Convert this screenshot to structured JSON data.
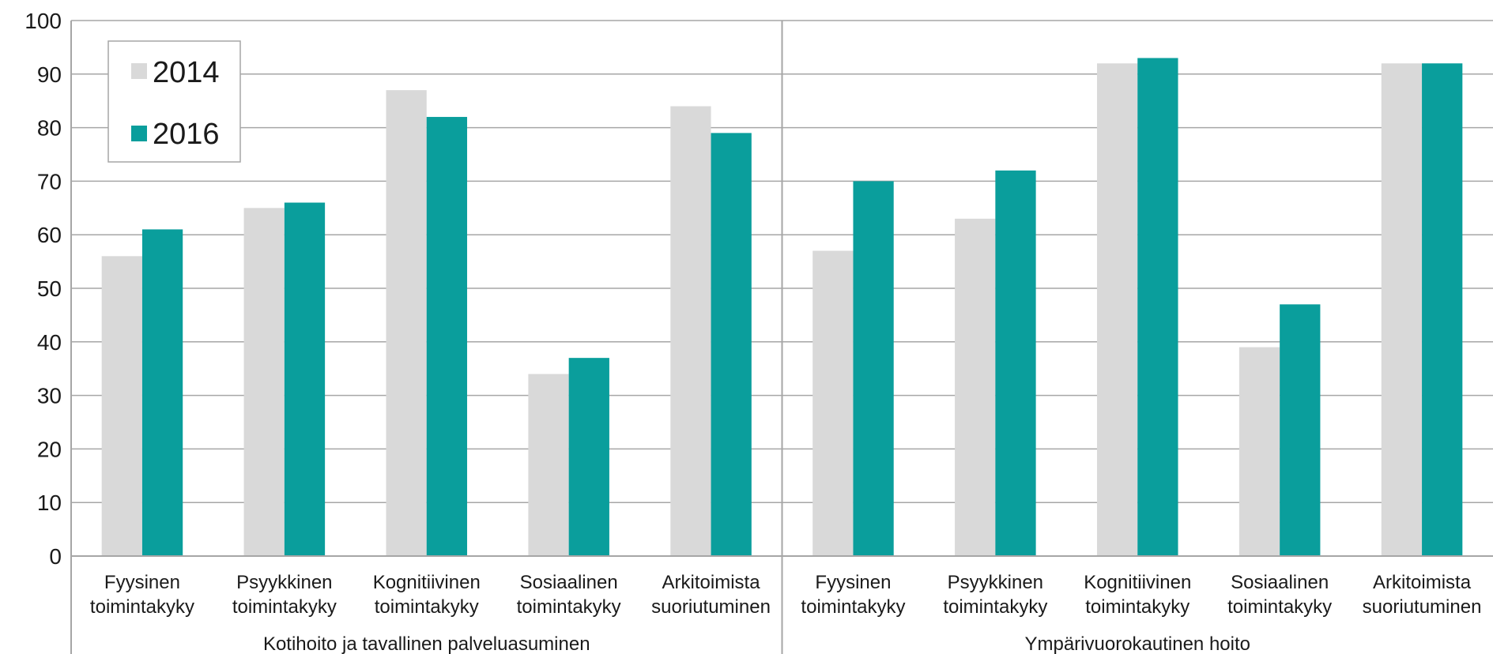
{
  "chart_data": {
    "type": "bar",
    "ylim": [
      0,
      100
    ],
    "yticks": [
      0,
      10,
      20,
      30,
      40,
      50,
      60,
      70,
      80,
      90,
      100
    ],
    "grid": true,
    "legend_position": "top-left",
    "groups": [
      {
        "label": "Kotihoito ja tavallinen palveluasuminen",
        "categories": [
          [
            "Fyysinen",
            "toimintakyky"
          ],
          [
            "Psyykkinen",
            "toimintakyky"
          ],
          [
            "Kognitiivinen",
            "toimintakyky"
          ],
          [
            "Sosiaalinen",
            "toimintakyky"
          ],
          [
            "Arkitoimista",
            "suoriutuminen"
          ]
        ]
      },
      {
        "label": "Ympärivuorokautinen hoito",
        "categories": [
          [
            "Fyysinen",
            "toimintakyky"
          ],
          [
            "Psyykkinen",
            "toimintakyky"
          ],
          [
            "Kognitiivinen",
            "toimintakyky"
          ],
          [
            "Sosiaalinen",
            "toimintakyky"
          ],
          [
            "Arkitoimista",
            "suoriutuminen"
          ]
        ]
      }
    ],
    "series": [
      {
        "name": "2014",
        "color": "#d9d9d9",
        "values": [
          56,
          65,
          87,
          34,
          84,
          57,
          63,
          92,
          39,
          92
        ]
      },
      {
        "name": "2016",
        "color": "#0a9e9c",
        "values": [
          61,
          66,
          82,
          37,
          79,
          70,
          72,
          93,
          47,
          92
        ]
      }
    ]
  }
}
